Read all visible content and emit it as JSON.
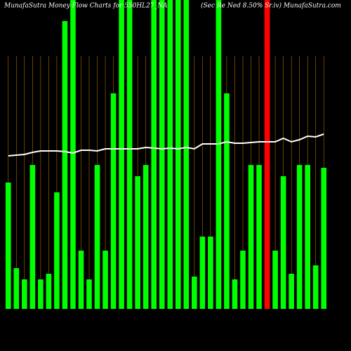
{
  "chart_data": {
    "type": "bar",
    "title": "MunafaSutra  Money Flow  Charts for 550HL27_NA",
    "subtitle": "(Sec Re  Ned 8.50% Sr.iv) MunafaSutra.com",
    "categories": [
      null,
      null,
      null,
      null,
      null,
      null,
      null,
      null,
      null,
      null,
      null,
      null,
      null,
      null,
      null,
      null,
      null,
      null,
      null,
      null,
      null,
      null,
      null,
      null,
      null,
      null,
      null,
      null,
      null,
      null,
      null,
      null,
      null,
      null,
      null,
      null,
      null,
      null,
      null,
      null
    ],
    "series": [
      {
        "name": null,
        "color": "#00ff00",
        "colors": [
          "#00ff00",
          "#00ff00",
          "#00ff00",
          "#00ff00",
          "#00ff00",
          "#00ff00",
          "#00ff00",
          "#00ff00",
          "#00ff00",
          "#00ff00",
          "#00ff00",
          "#00ff00",
          "#00ff00",
          "#00ff00",
          "#00ff00",
          "#00ff00",
          "#00ff00",
          "#00ff00",
          "#00ff00",
          "#00ff00",
          "#00ff00",
          "#00ff00",
          "#00ff00",
          "#00ff00",
          "#00ff00",
          "#00ff00",
          "#00ff00",
          "#00ff00",
          "#00ff00",
          "#00ff00",
          "#00ff00",
          "#00ff00",
          "#ff0000",
          "#00ff00",
          "#00ff00",
          "#00ff00",
          "#00ff00",
          "#00ff00",
          "#00ff00",
          "#00ff00"
        ],
        "values": [
          180,
          58,
          42,
          205,
          42,
          50,
          166,
          410,
          440,
          83,
          42,
          205,
          83,
          307,
          440,
          440,
          189,
          205,
          440,
          440,
          440,
          440,
          440,
          46,
          103,
          103,
          440,
          307,
          42,
          83,
          205,
          205,
          440,
          83,
          189,
          50,
          205,
          205,
          62,
          201
        ]
      },
      {
        "name": null,
        "color": "#ffffff",
        "kind": "line",
        "values": [
          218,
          219,
          220,
          223,
          225,
          225,
          225,
          224,
          222,
          226,
          226,
          225,
          228,
          228,
          228,
          228,
          228,
          230,
          229,
          228,
          229,
          228,
          230,
          228,
          235,
          235,
          235,
          238,
          236,
          236,
          237,
          238,
          238,
          238,
          243,
          238,
          241,
          246,
          245,
          249
        ]
      }
    ],
    "ylim": [
      0,
      440
    ],
    "grid_color": "#b86a00"
  }
}
